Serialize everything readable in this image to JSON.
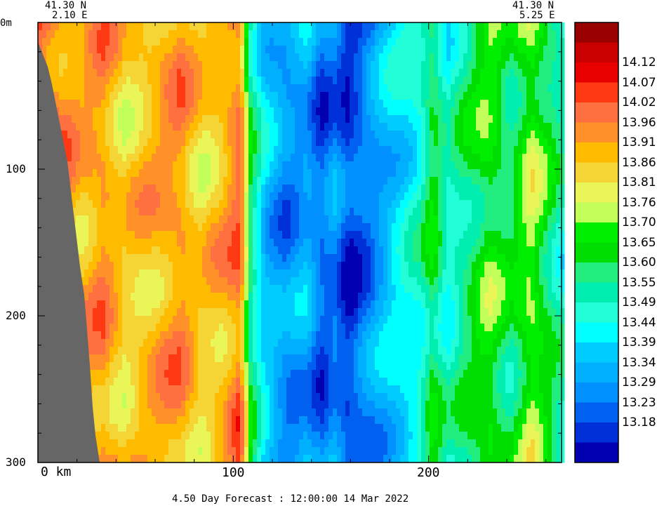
{
  "chart_data": {
    "type": "heatmap",
    "title": "4.50 Day Forecast : 12:00:00  14 Mar 2022",
    "corner_left": {
      "lat": "41.30 N",
      "lon": "2.10 E"
    },
    "corner_right": {
      "lat": "41.30 N",
      "lon": "5.25 E"
    },
    "x_unit_label": "0 km",
    "x_ticks": [
      100,
      200
    ],
    "x_range_km": [
      0,
      268
    ],
    "y_top_label": "0m",
    "y_ticks": [
      100,
      200,
      300
    ],
    "y_range_m": [
      0,
      300
    ],
    "colorbar_levels": [
      "14.12",
      "14.07",
      "14.02",
      "13.96",
      "13.91",
      "13.86",
      "13.81",
      "13.76",
      "13.70",
      "13.65",
      "13.60",
      "13.55",
      "13.49",
      "13.44",
      "13.39",
      "13.34",
      "13.29",
      "13.23",
      "13.18"
    ],
    "colorbar_colors": [
      "#990000",
      "#c80000",
      "#e80000",
      "#ff3a12",
      "#ff7040",
      "#ff9128",
      "#ffbb00",
      "#f5d536",
      "#eaf558",
      "#c2ff5a",
      "#00ee00",
      "#00dd00",
      "#22ee80",
      "#00eeb0",
      "#22ffd8",
      "#00ffff",
      "#00ccff",
      "#00b0ff",
      "#0090ff",
      "#0060f0",
      "#0030d8",
      "#0000b0"
    ],
    "land_color": "#666666"
  }
}
